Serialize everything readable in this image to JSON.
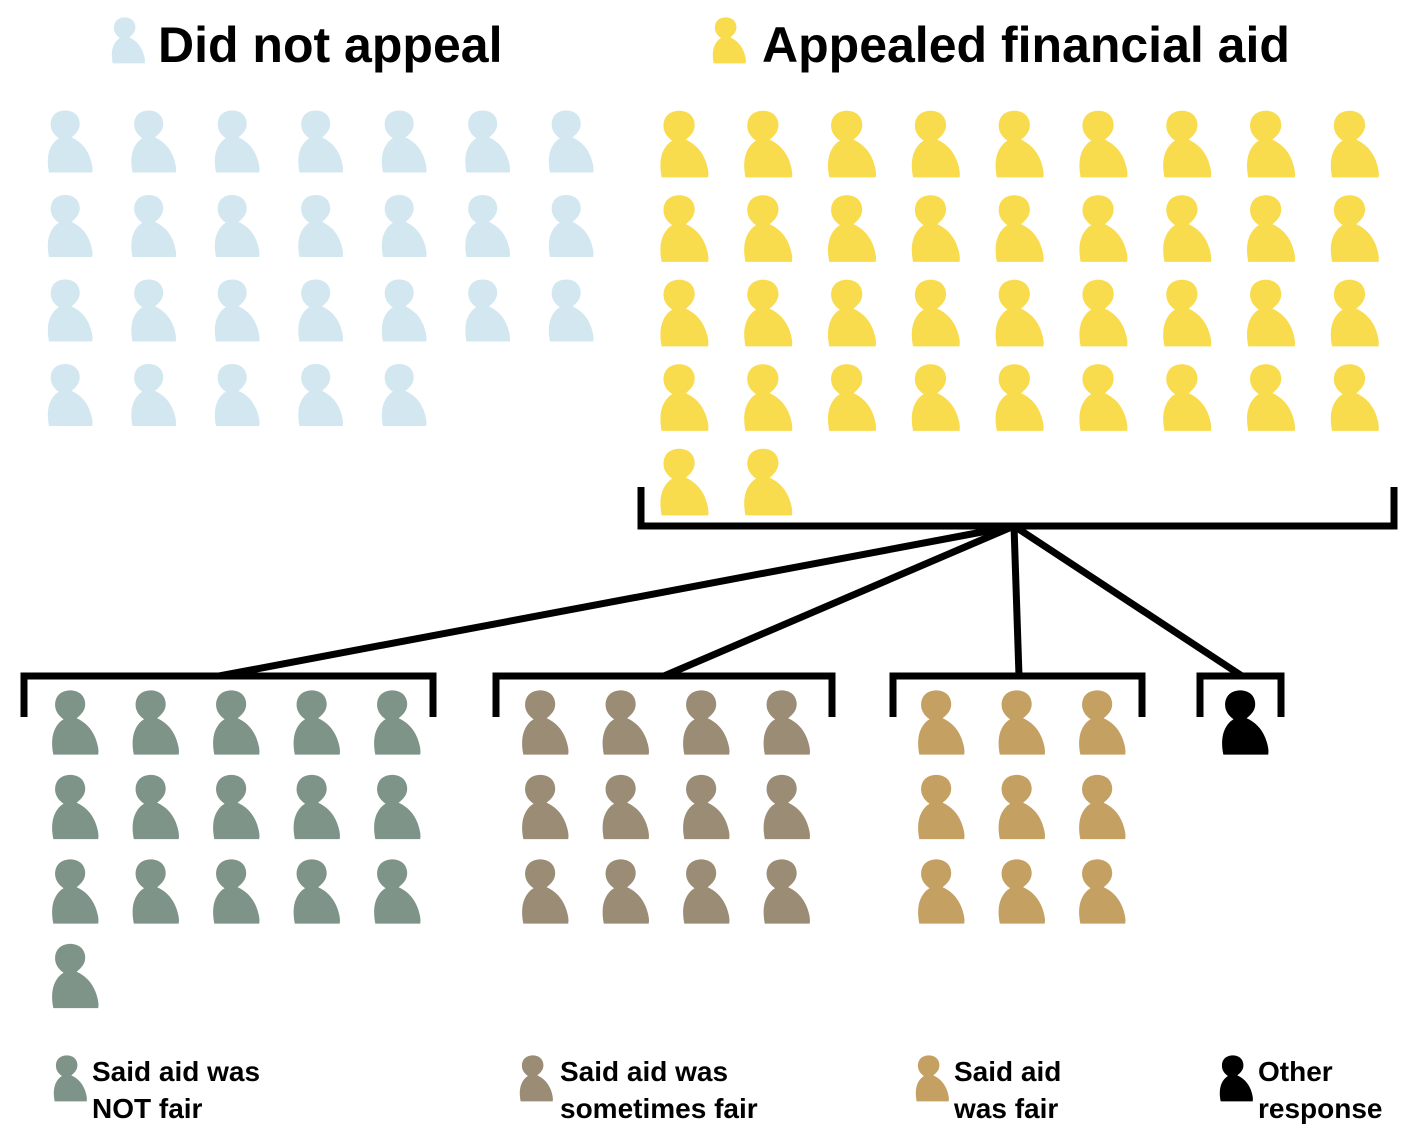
{
  "chart_data": {
    "type": "pictogram",
    "unit": "one figure per respondent",
    "groups": [
      {
        "id": "did-not-appeal",
        "label": "Did not appeal",
        "value": 26,
        "color": "#d3e7f1"
      },
      {
        "id": "appealed",
        "label": "Appealed financial aid",
        "value": 38,
        "color": "#f9db4e"
      }
    ],
    "breakdown_of": "appealed",
    "categories": [
      {
        "id": "not-fair",
        "label_line1": "Said aid was",
        "label_line2": "NOT fair",
        "value": 16,
        "color": "#7f9488"
      },
      {
        "id": "sometimes-fair",
        "label_line1": "Said aid was",
        "label_line2": "sometimes fair",
        "value": 12,
        "color": "#9b8c76"
      },
      {
        "id": "fair",
        "label_line1": "Said aid",
        "label_line2": "was fair",
        "value": 9,
        "color": "#c4a163"
      },
      {
        "id": "other",
        "label_line1": "Other",
        "label_line2": "response",
        "value": 1,
        "color": "#000000"
      }
    ]
  }
}
